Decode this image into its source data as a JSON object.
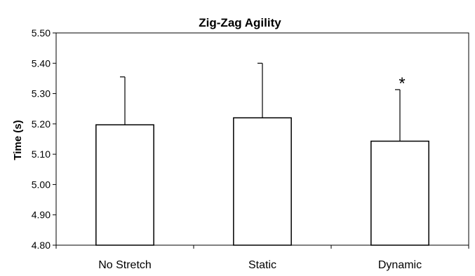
{
  "chart_data": {
    "type": "bar",
    "title": "Zig-Zag Agility",
    "xlabel": "",
    "ylabel": "Time (s)",
    "categories": [
      "No Stretch",
      "Static",
      "Dynamic"
    ],
    "values": [
      5.197,
      5.22,
      5.143
    ],
    "error_upper": [
      0.158,
      0.18,
      0.17
    ],
    "ylim": [
      4.8,
      5.5
    ],
    "yticks": [
      "4.80",
      "4.90",
      "5.00",
      "5.10",
      "5.20",
      "5.30",
      "5.40",
      "5.50"
    ],
    "ytick_values": [
      4.8,
      4.9,
      5.0,
      5.1,
      5.2,
      5.3,
      5.4,
      5.5
    ],
    "annotations": [
      {
        "category": "Dynamic",
        "text": "*"
      }
    ],
    "grid": false,
    "legend": "none",
    "colors": {
      "bar_fill": "#ffffff",
      "bar_stroke": "#000000",
      "axis": "#000000"
    }
  }
}
